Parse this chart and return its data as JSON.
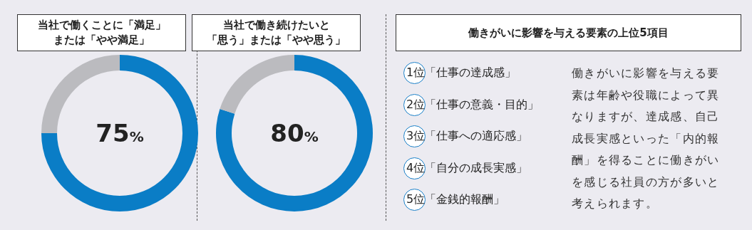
{
  "chart_data": [
    {
      "type": "donut",
      "title": "当社で働くことに「満足」または「やや満足」",
      "categories": [
        null,
        null
      ],
      "values": [
        75,
        25
      ],
      "colors": [
        "#0a7dc6",
        "#bbbbbf"
      ],
      "annotations": [
        "75%"
      ]
    },
    {
      "type": "donut",
      "title": "当社で働き続けたいと「思う」または「やや思う」",
      "categories": [
        null,
        null
      ],
      "values": [
        80,
        20
      ],
      "colors": [
        "#0a7dc6",
        "#bbbbbf"
      ],
      "annotations": [
        "80%"
      ]
    },
    {
      "type": "other",
      "title": "働きがいに影響を与える要素の上位5項目",
      "annotations": [
        "1位「仕事の達成感」",
        "2位「仕事の意義・目的」",
        "3位「仕事への適応感」",
        "4位「自分の成長実感」",
        "5位「金銭的報酬」",
        "働きがいに影響を与える要素は年齢や役職によって異なりますが、達成感、自己成長実感といった「内的報酬」を得ることに働きがいを感じる社員の方が多いと考えられます。"
      ]
    }
  ]
}
